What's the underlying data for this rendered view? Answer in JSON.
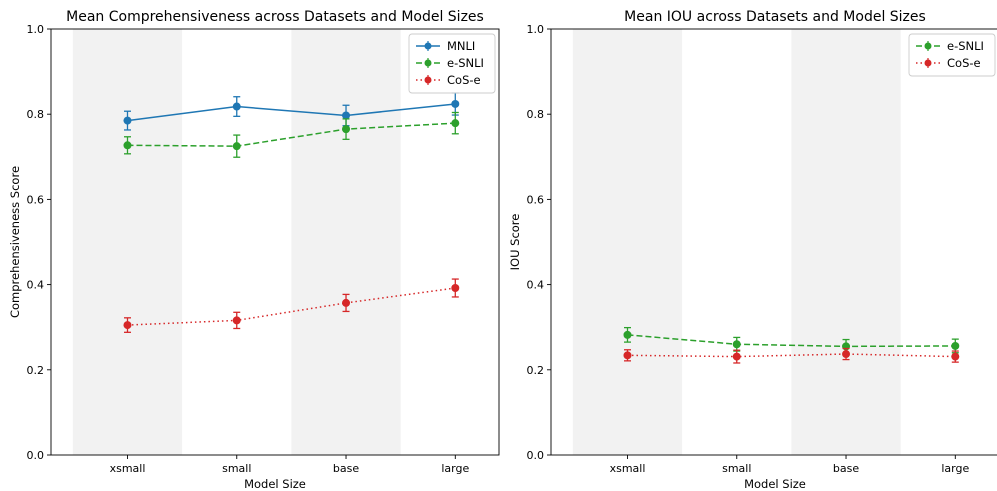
{
  "chart_data": [
    {
      "type": "line",
      "title": "Mean Comprehensiveness across Datasets and Model Sizes",
      "xlabel": "Model Size",
      "ylabel": "Comprehensiveness Score",
      "categories": [
        "xsmall",
        "small",
        "base",
        "large"
      ],
      "ylim": [
        0,
        1
      ],
      "yticks": [
        "0.0",
        "0.2",
        "0.4",
        "0.6",
        "0.8",
        "1.0"
      ],
      "legend_position": "top-right",
      "shaded_bands": [
        "xsmall",
        "base"
      ],
      "series": [
        {
          "name": "MNLI",
          "color": "#1f77b4",
          "dash": "solid",
          "values": [
            0.785,
            0.818,
            0.797,
            0.824
          ],
          "errors": [
            0.022,
            0.023,
            0.024,
            0.026
          ]
        },
        {
          "name": "e-SNLI",
          "color": "#2ca02c",
          "dash": "dashed",
          "values": [
            0.727,
            0.725,
            0.765,
            0.779
          ],
          "errors": [
            0.02,
            0.026,
            0.024,
            0.025
          ]
        },
        {
          "name": "CoS-e",
          "color": "#d62728",
          "dash": "dotted",
          "values": [
            0.305,
            0.316,
            0.357,
            0.392
          ],
          "errors": [
            0.017,
            0.019,
            0.02,
            0.021
          ]
        }
      ]
    },
    {
      "type": "line",
      "title": "Mean IOU across Datasets and Model Sizes",
      "xlabel": "Model Size",
      "ylabel": "IOU Score",
      "categories": [
        "xsmall",
        "small",
        "base",
        "large"
      ],
      "ylim": [
        0,
        1
      ],
      "yticks": [
        "0.0",
        "0.2",
        "0.4",
        "0.6",
        "0.8",
        "1.0"
      ],
      "legend_position": "top-right",
      "shaded_bands": [
        "xsmall",
        "base"
      ],
      "series": [
        {
          "name": "e-SNLI",
          "color": "#2ca02c",
          "dash": "dashed",
          "values": [
            0.282,
            0.26,
            0.255,
            0.256
          ],
          "errors": [
            0.017,
            0.016,
            0.016,
            0.016
          ]
        },
        {
          "name": "CoS-e",
          "color": "#d62728",
          "dash": "dotted",
          "values": [
            0.234,
            0.231,
            0.237,
            0.231
          ],
          "errors": [
            0.013,
            0.015,
            0.013,
            0.013
          ]
        }
      ]
    }
  ]
}
